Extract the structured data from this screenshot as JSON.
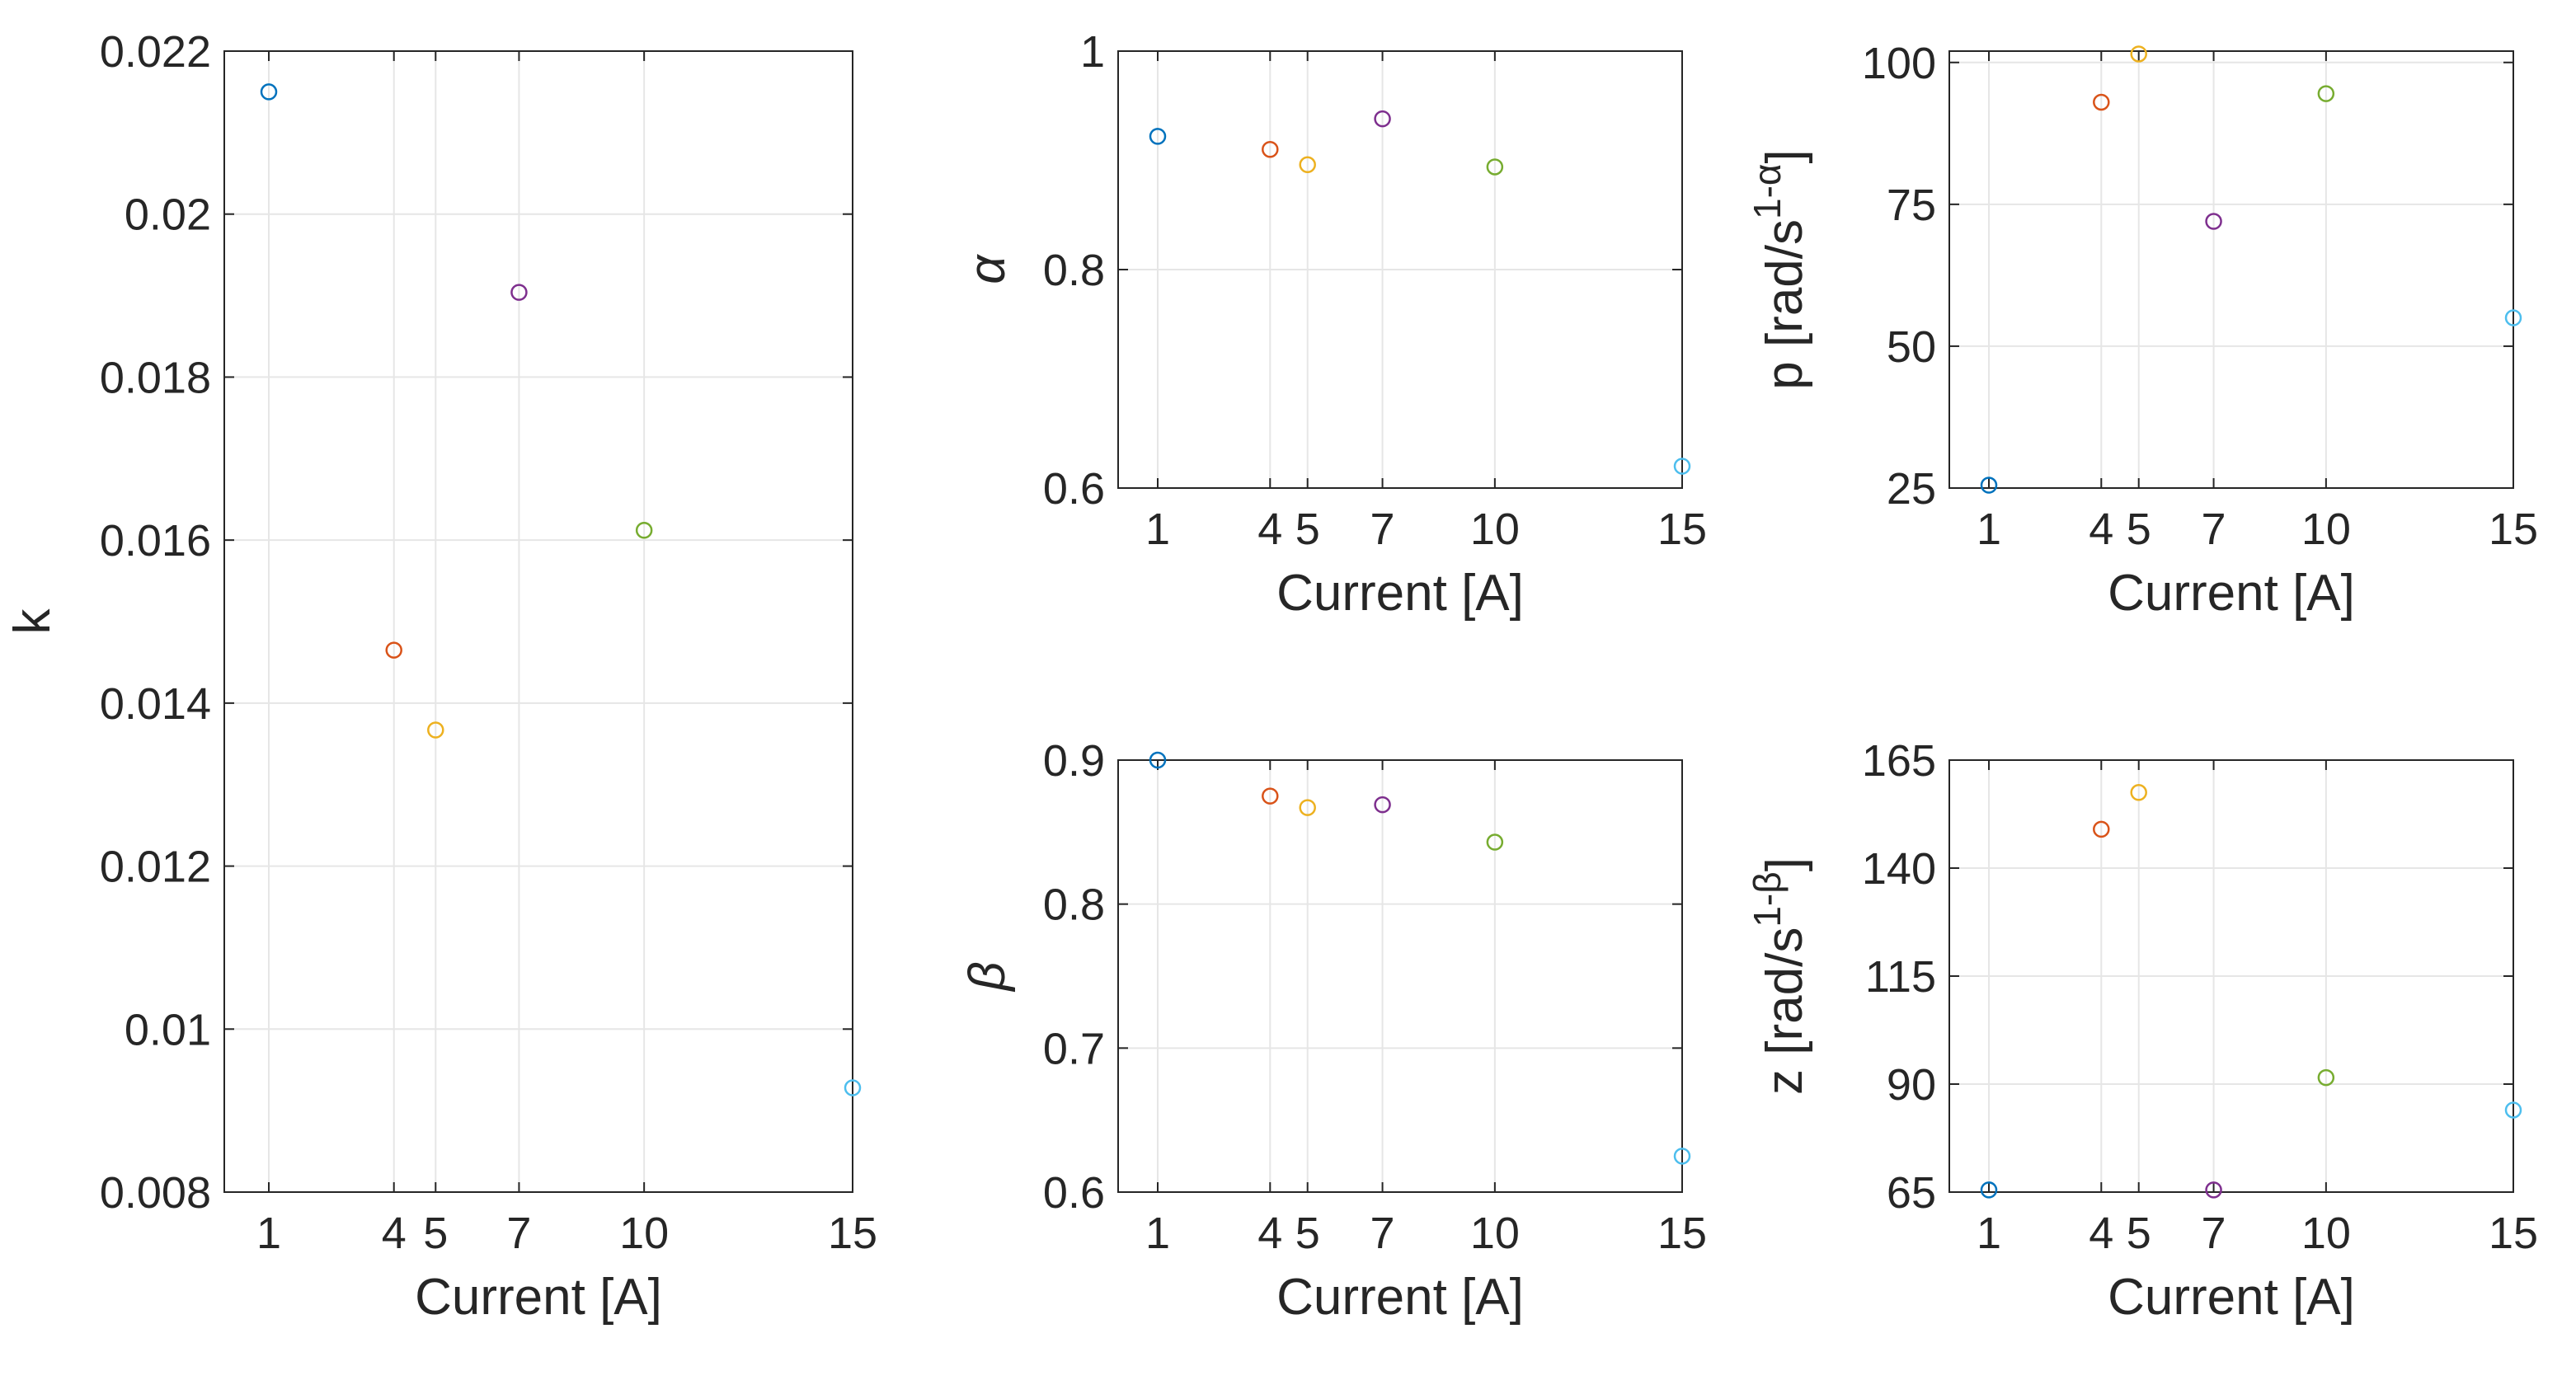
{
  "colors": [
    "#0072BD",
    "#D95319",
    "#EDB120",
    "#7E2F8E",
    "#77AC30",
    "#4DBEEE"
  ],
  "chart_data": [
    {
      "type": "scatter",
      "id": "k",
      "x": [
        1,
        4,
        5,
        7,
        10,
        15
      ],
      "y": [
        0.0215,
        0.01465,
        0.01367,
        0.01904,
        0.01612,
        0.00928
      ],
      "xlabel": "Current [A]",
      "ylabel": "k",
      "ylabel_sup": "",
      "xlim": [
        0,
        15
      ],
      "ylim": [
        0.008,
        0.022
      ],
      "xticks": [
        1,
        4,
        5,
        7,
        10,
        15
      ],
      "xtick_labels": [
        "1",
        "4",
        "5",
        "7",
        "10",
        "15"
      ],
      "yticks": [
        0.008,
        0.01,
        0.012,
        0.014,
        0.016,
        0.018,
        0.02,
        0.022
      ],
      "ytick_labels": [
        "0.008",
        "0.01",
        "0.012",
        "0.014",
        "0.016",
        "0.018",
        "0.02",
        "0.022"
      ],
      "grid": true
    },
    {
      "type": "scatter",
      "id": "alpha",
      "x": [
        1,
        4,
        5,
        7,
        10,
        15
      ],
      "y": [
        0.922,
        0.91,
        0.896,
        0.938,
        0.894,
        0.62
      ],
      "xlabel": "Current [A]",
      "ylabel": "α",
      "ylabel_sup": "",
      "xlim": [
        0,
        15
      ],
      "ylim": [
        0.6,
        1
      ],
      "xticks": [
        1,
        4,
        5,
        7,
        10,
        15
      ],
      "xtick_labels": [
        "1",
        "4",
        "5",
        "7",
        "10",
        "15"
      ],
      "yticks": [
        0.6,
        0.8,
        1
      ],
      "ytick_labels": [
        "0.6",
        "0.8",
        "1"
      ],
      "grid": true
    },
    {
      "type": "scatter",
      "id": "p",
      "x": [
        1,
        4,
        5,
        7,
        10,
        15
      ],
      "y": [
        25.5,
        93,
        101.5,
        72,
        94.5,
        55
      ],
      "xlabel": "Current [A]",
      "ylabel": "p [rad/s",
      "ylabel_sup": "1-α",
      "ylabel_end": "]",
      "xlim": [
        0,
        15
      ],
      "ylim": [
        25,
        102
      ],
      "xticks": [
        1,
        4,
        5,
        7,
        10,
        15
      ],
      "xtick_labels": [
        "1",
        "4",
        "5",
        "7",
        "10",
        "15"
      ],
      "yticks": [
        25,
        50,
        75,
        100
      ],
      "ytick_labels": [
        "25",
        "50",
        "75",
        "100"
      ],
      "grid": true
    },
    {
      "type": "scatter",
      "id": "beta",
      "x": [
        1,
        4,
        5,
        7,
        10,
        15
      ],
      "y": [
        0.9,
        0.875,
        0.867,
        0.869,
        0.843,
        0.625
      ],
      "xlabel": "Current [A]",
      "ylabel": "β",
      "ylabel_sup": "",
      "xlim": [
        0,
        15
      ],
      "ylim": [
        0.6,
        0.9
      ],
      "xticks": [
        1,
        4,
        5,
        7,
        10,
        15
      ],
      "xtick_labels": [
        "1",
        "4",
        "5",
        "7",
        "10",
        "15"
      ],
      "yticks": [
        0.6,
        0.7,
        0.8,
        0.9
      ],
      "ytick_labels": [
        "0.6",
        "0.7",
        "0.8",
        "0.9"
      ],
      "grid": true
    },
    {
      "type": "scatter",
      "id": "z",
      "x": [
        1,
        4,
        5,
        7,
        10,
        15
      ],
      "y": [
        65.5,
        149,
        157.5,
        65.5,
        91.5,
        84
      ],
      "xlabel": "Current [A]",
      "ylabel": "z [rad/s",
      "ylabel_sup": "1-β",
      "ylabel_end": "]",
      "xlim": [
        0,
        15
      ],
      "ylim": [
        65,
        165
      ],
      "xticks": [
        1,
        4,
        5,
        7,
        10,
        15
      ],
      "xtick_labels": [
        "1",
        "4",
        "5",
        "7",
        "10",
        "15"
      ],
      "yticks": [
        65,
        90,
        115,
        140,
        165
      ],
      "ytick_labels": [
        "65",
        "90",
        "115",
        "140",
        "165"
      ],
      "grid": true
    }
  ]
}
